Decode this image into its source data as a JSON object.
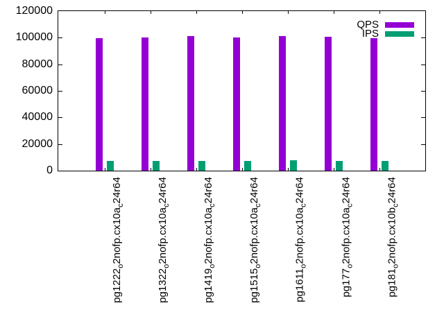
{
  "chart_data": {
    "type": "bar",
    "title": "",
    "xlabel": "",
    "ylabel": "",
    "categories": [
      "pg1222_o2nofp.cx10a_c24r64",
      "pg1322_o2nofp.cx10a_c24r64",
      "pg1419_o2nofp.cx10a_c24r64",
      "pg1515_o2nofp.cx10a_c24r64",
      "pg1611_o2nofp.cx10a_c24r64",
      "pg177_o2nofp.cx10a_c24r64",
      "pg181_o2nofp.cx10b_c24r64"
    ],
    "series": [
      {
        "name": "QPS",
        "color": "#9400d3",
        "values": [
          99500,
          100300,
          101000,
          100400,
          101300,
          100900,
          99500
        ]
      },
      {
        "name": "IPS",
        "color": "#009e73",
        "values": [
          7500,
          7500,
          7500,
          7500,
          7600,
          7500,
          7500
        ]
      }
    ],
    "ylim": [
      0,
      120000
    ],
    "yticks": [
      0,
      20000,
      40000,
      60000,
      80000,
      100000,
      120000
    ],
    "ytick_labels": [
      "0",
      "20000",
      "40000",
      "60000",
      "80000",
      "100000",
      "120000"
    ],
    "legend_position": "top-right-inside",
    "grid": false,
    "background": "#ffffff",
    "axis_color": "#000000"
  }
}
